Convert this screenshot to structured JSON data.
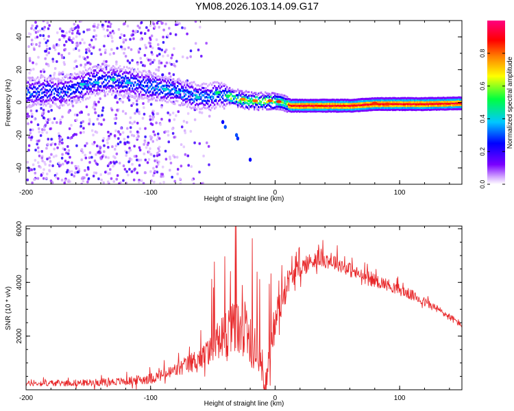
{
  "figure": {
    "title": "YM08.2026.103.14.09.G17"
  },
  "colors": {
    "axis": "#000000",
    "snr_line": "#e8282a",
    "background": "#ffffff"
  },
  "chart_data": [
    {
      "type": "heatmap",
      "name": "spectrogram",
      "xlabel": "Height of straight line (km)",
      "ylabel": "Frequency (Hz)",
      "xlim": [
        -200,
        150
      ],
      "ylim": [
        -50,
        50
      ],
      "xticks": [
        -200,
        -100,
        0,
        100
      ],
      "yticks": [
        -40,
        -20,
        0,
        20,
        40
      ],
      "ridge": [
        {
          "x": -195,
          "f": 6
        },
        {
          "x": -185,
          "f": 7
        },
        {
          "x": -175,
          "f": 6
        },
        {
          "x": -165,
          "f": 8
        },
        {
          "x": -155,
          "f": 10
        },
        {
          "x": -145,
          "f": 13
        },
        {
          "x": -135,
          "f": 14
        },
        {
          "x": -125,
          "f": 13
        },
        {
          "x": -115,
          "f": 12
        },
        {
          "x": -105,
          "f": 10
        },
        {
          "x": -95,
          "f": 9
        },
        {
          "x": -85,
          "f": 8
        },
        {
          "x": -75,
          "f": 6
        },
        {
          "x": -65,
          "f": 4
        },
        {
          "x": -55,
          "f": 3
        },
        {
          "x": -45,
          "f": 5
        },
        {
          "x": -38,
          "f": 4
        },
        {
          "x": -30,
          "f": 2
        },
        {
          "x": -22,
          "f": 1
        },
        {
          "x": -12,
          "f": 1
        },
        {
          "x": -5,
          "f": 1
        },
        {
          "x": 5,
          "f": 0
        },
        {
          "x": 12,
          "f": -2
        },
        {
          "x": 30,
          "f": -2
        },
        {
          "x": 60,
          "f": -2
        },
        {
          "x": 80,
          "f": -1
        },
        {
          "x": 100,
          "f": -1
        },
        {
          "x": 120,
          "f": -1
        },
        {
          "x": 150,
          "f": -0.5
        }
      ],
      "colorbar": {
        "label": "Normalized spectral amplitude",
        "range": [
          0,
          1
        ],
        "ticks": [
          0.0,
          0.2,
          0.4,
          0.6,
          0.8
        ],
        "tick_labels": [
          "0.0",
          "0.2",
          "0.4",
          "0.6",
          "0.8"
        ],
        "colormap": [
          "#ffffff",
          "#7a00ff",
          "#0000ff",
          "#00c0ff",
          "#00ff40",
          "#ffff00",
          "#ff8000",
          "#ff0000",
          "#ff0080"
        ]
      }
    },
    {
      "type": "line",
      "name": "snr",
      "xlabel": "Height of straight line (km)",
      "ylabel": "SNR (10 * v/v)",
      "xlim": [
        -200,
        150
      ],
      "ylim": [
        0,
        6100
      ],
      "xticks": [
        -200,
        -100,
        0,
        100
      ],
      "yticks": [
        2000,
        4000,
        6000
      ],
      "series": [
        {
          "name": "SNR",
          "color": "#e8282a",
          "envelope": [
            {
              "x": -200,
              "mean": 220,
              "spread": 200
            },
            {
              "x": -150,
              "mean": 250,
              "spread": 250
            },
            {
              "x": -120,
              "mean": 300,
              "spread": 300
            },
            {
              "x": -100,
              "mean": 400,
              "spread": 400
            },
            {
              "x": -85,
              "mean": 600,
              "spread": 500
            },
            {
              "x": -70,
              "mean": 900,
              "spread": 700
            },
            {
              "x": -55,
              "mean": 1300,
              "spread": 1000
            },
            {
              "x": -40,
              "mean": 2000,
              "spread": 1800
            },
            {
              "x": -30,
              "mean": 2300,
              "spread": 2200
            },
            {
              "x": -20,
              "mean": 1800,
              "spread": 2000
            },
            {
              "x": -12,
              "mean": 900,
              "spread": 1300
            },
            {
              "x": -7,
              "mean": 700,
              "spread": 1200
            },
            {
              "x": 0,
              "mean": 2500,
              "spread": 1500
            },
            {
              "x": 10,
              "mean": 4000,
              "spread": 900
            },
            {
              "x": 20,
              "mean": 4500,
              "spread": 700
            },
            {
              "x": 35,
              "mean": 4900,
              "spread": 700
            },
            {
              "x": 50,
              "mean": 4700,
              "spread": 600
            },
            {
              "x": 70,
              "mean": 4200,
              "spread": 500
            },
            {
              "x": 90,
              "mean": 3900,
              "spread": 450
            },
            {
              "x": 110,
              "mean": 3500,
              "spread": 400
            },
            {
              "x": 130,
              "mean": 3000,
              "spread": 300
            },
            {
              "x": 150,
              "mean": 2400,
              "spread": 250
            }
          ]
        }
      ]
    }
  ]
}
